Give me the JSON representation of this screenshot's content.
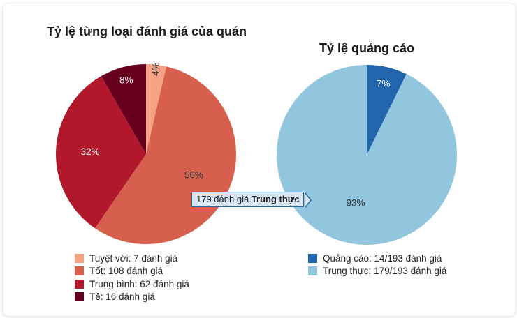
{
  "chart_data": [
    {
      "type": "pie",
      "title": "Tỷ lệ từng loại đánh giá của quán",
      "categories": [
        "Tuyệt vời",
        "Tốt",
        "Trung bình",
        "Tệ"
      ],
      "values": [
        7,
        108,
        62,
        16
      ],
      "labels": [
        "4%",
        "56%",
        "32%",
        "8%"
      ],
      "colors": [
        "#f4a283",
        "#d6604d",
        "#b2182b",
        "#67001f"
      ],
      "legend": [
        "Tuyệt vời: 7 đánh giá",
        "Tốt: 108 đánh giá",
        "Trung bình: 62 đánh giá",
        "Tệ: 16 đánh giá"
      ],
      "legend_position": "bottom"
    },
    {
      "type": "pie",
      "title": "Tỷ lệ quảng cáo",
      "categories": [
        "Quảng cáo",
        "Trung thực"
      ],
      "values": [
        14,
        179
      ],
      "labels": [
        "7%",
        "93%"
      ],
      "colors": [
        "#2166ac",
        "#92c5de"
      ],
      "legend": [
        "Quảng cáo: 14/193 đánh giá",
        "Trung thực: 179/193 đánh giá"
      ],
      "legend_position": "bottom"
    }
  ],
  "tooltip": {
    "text": "179 đánh giá",
    "bold": "Trung thực"
  }
}
